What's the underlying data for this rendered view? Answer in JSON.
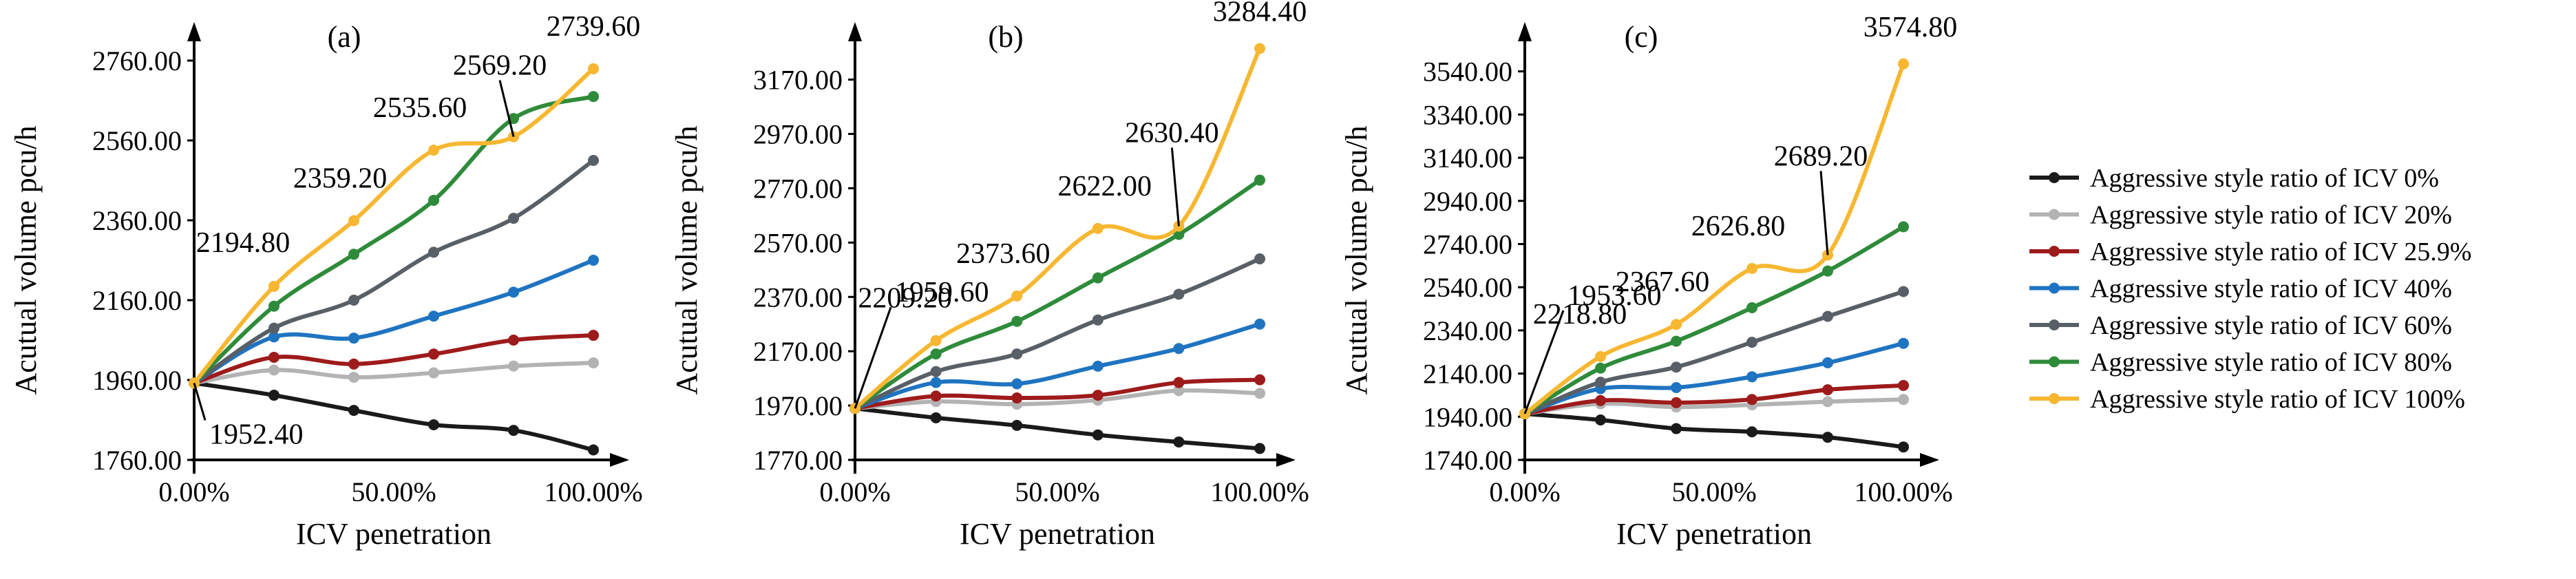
{
  "chart_data": [
    {
      "type": "line",
      "panel_label": "(a)",
      "xlabel": "ICV penetration",
      "ylabel": "Acutual volume pcu/h",
      "x": [
        0,
        20,
        40,
        60,
        80,
        100
      ],
      "xlim": [
        0,
        100
      ],
      "ylim": [
        1760,
        2760
      ],
      "x_ticks": [
        {
          "v": 0,
          "label": "0.00%"
        },
        {
          "v": 50,
          "label": "50.00%"
        },
        {
          "v": 100,
          "label": "100.00%"
        }
      ],
      "y_ticks": [
        {
          "v": 1760,
          "label": "1760.00"
        },
        {
          "v": 1960,
          "label": "1960.00"
        },
        {
          "v": 2160,
          "label": "2160.00"
        },
        {
          "v": 2360,
          "label": "2360.00"
        },
        {
          "v": 2560,
          "label": "2560.00"
        },
        {
          "v": 2760,
          "label": "2760.00"
        }
      ],
      "series": [
        {
          "name": "Aggressive style ratio of ICV 0%",
          "values": [
            1952.4,
            1922,
            1884,
            1848,
            1834,
            1785
          ]
        },
        {
          "name": "Aggressive style ratio of ICV 20%",
          "values": [
            1952.4,
            1985,
            1967,
            1978,
            1995,
            2003
          ]
        },
        {
          "name": "Aggressive style ratio of ICV 25.9%",
          "values": [
            1952.4,
            2017,
            2000,
            2025,
            2060,
            2072
          ]
        },
        {
          "name": "Aggressive style ratio of ICV 40%",
          "values": [
            1952.4,
            2068,
            2065,
            2120,
            2180,
            2260
          ]
        },
        {
          "name": "Aggressive style ratio of ICV 60%",
          "values": [
            1952.4,
            2090,
            2160,
            2280,
            2365,
            2510
          ]
        },
        {
          "name": "Aggressive style ratio of ICV 80%",
          "values": [
            1952.4,
            2145,
            2275,
            2410,
            2615,
            2670
          ]
        },
        {
          "name": "Aggressive style ratio of ICV 100%",
          "values": [
            1952.4,
            2194.8,
            2359.2,
            2535.6,
            2569.2,
            2739.6
          ]
        }
      ],
      "annotations": [
        {
          "text": "2739.60",
          "x": 100,
          "y": 2739.6
        },
        {
          "text": "2569.20",
          "x": 80,
          "y": 2569.2
        },
        {
          "text": "2535.60",
          "x": 60,
          "y": 2535.6
        },
        {
          "text": "2359.20",
          "x": 40,
          "y": 2359.2
        },
        {
          "text": "2194.80",
          "x": 20,
          "y": 2194.8
        },
        {
          "text": "1952.40",
          "x": 0,
          "y": 1952.4
        }
      ]
    },
    {
      "type": "line",
      "panel_label": "(b)",
      "xlabel": "ICV penetration",
      "ylabel": "Acutual volume pcu/h",
      "x": [
        0,
        20,
        40,
        60,
        80,
        100
      ],
      "xlim": [
        0,
        100
      ],
      "ylim": [
        1770,
        3240
      ],
      "x_ticks": [
        {
          "v": 0,
          "label": "0.00%"
        },
        {
          "v": 50,
          "label": "50.00%"
        },
        {
          "v": 100,
          "label": "100.00%"
        }
      ],
      "y_ticks": [
        {
          "v": 1770,
          "label": "1770.00"
        },
        {
          "v": 1970,
          "label": "1970.00"
        },
        {
          "v": 2170,
          "label": "2170.00"
        },
        {
          "v": 2370,
          "label": "2370.00"
        },
        {
          "v": 2570,
          "label": "2570.00"
        },
        {
          "v": 2770,
          "label": "2770.00"
        },
        {
          "v": 2970,
          "label": "2970.00"
        },
        {
          "v": 3170,
          "label": "3170.00"
        }
      ],
      "series": [
        {
          "name": "Aggressive style ratio of ICV 0%",
          "values": [
            1959.6,
            1925,
            1897,
            1862,
            1836,
            1812
          ]
        },
        {
          "name": "Aggressive style ratio of ICV 20%",
          "values": [
            1959.6,
            1985,
            1975,
            1990,
            2025,
            2015
          ]
        },
        {
          "name": "Aggressive style ratio of ICV 25.9%",
          "values": [
            1959.6,
            2005,
            1998,
            2008,
            2055,
            2065
          ]
        },
        {
          "name": "Aggressive style ratio of ICV 40%",
          "values": [
            1959.6,
            2055,
            2050,
            2115,
            2180,
            2270
          ]
        },
        {
          "name": "Aggressive style ratio of ICV 60%",
          "values": [
            1959.6,
            2095,
            2160,
            2285,
            2380,
            2510
          ]
        },
        {
          "name": "Aggressive style ratio of ICV 80%",
          "values": [
            1959.6,
            2160,
            2280,
            2440,
            2600,
            2800
          ]
        },
        {
          "name": "Aggressive style ratio of ICV 100%",
          "values": [
            1959.6,
            2209.2,
            2373.6,
            2622.0,
            2630.4,
            3284.4
          ]
        }
      ],
      "annotations": [
        {
          "text": "3284.40",
          "x": 100,
          "y": 3284.4
        },
        {
          "text": "2630.40",
          "x": 80,
          "y": 2630.4
        },
        {
          "text": "2622.00",
          "x": 60,
          "y": 2622.0
        },
        {
          "text": "2373.60",
          "x": 40,
          "y": 2373.6
        },
        {
          "text": "2209.20",
          "x": 20,
          "y": 2209.2
        },
        {
          "text": "1959.60",
          "x": 0,
          "y": 1959.6
        }
      ]
    },
    {
      "type": "line",
      "panel_label": "(c)",
      "xlabel": "ICV penetration",
      "ylabel": "Acutual volume pcu/h",
      "x": [
        0,
        20,
        40,
        60,
        80,
        100
      ],
      "xlim": [
        0,
        100
      ],
      "ylim": [
        1740,
        3590
      ],
      "x_ticks": [
        {
          "v": 0,
          "label": "0.00%"
        },
        {
          "v": 50,
          "label": "50.00%"
        },
        {
          "v": 100,
          "label": "100.00%"
        }
      ],
      "y_ticks": [
        {
          "v": 1740,
          "label": "1740.00"
        },
        {
          "v": 1940,
          "label": "1940.00"
        },
        {
          "v": 2140,
          "label": "2140.00"
        },
        {
          "v": 2340,
          "label": "2340.00"
        },
        {
          "v": 2540,
          "label": "2540.00"
        },
        {
          "v": 2740,
          "label": "2740.00"
        },
        {
          "v": 2940,
          "label": "2940.00"
        },
        {
          "v": 3140,
          "label": "3140.00"
        },
        {
          "v": 3340,
          "label": "3340.00"
        },
        {
          "v": 3540,
          "label": "3540.00"
        }
      ],
      "series": [
        {
          "name": "Aggressive style ratio of ICV 0%",
          "values": [
            1953.6,
            1925,
            1885,
            1870,
            1845,
            1800
          ]
        },
        {
          "name": "Aggressive style ratio of ICV 20%",
          "values": [
            1953.6,
            2000,
            1985,
            1995,
            2010,
            2020
          ]
        },
        {
          "name": "Aggressive style ratio of ICV 25.9%",
          "values": [
            1953.6,
            2015,
            2005,
            2020,
            2065,
            2085
          ]
        },
        {
          "name": "Aggressive style ratio of ICV 40%",
          "values": [
            1953.6,
            2070,
            2075,
            2125,
            2190,
            2280
          ]
        },
        {
          "name": "Aggressive style ratio of ICV 60%",
          "values": [
            1953.6,
            2100,
            2170,
            2285,
            2405,
            2520
          ]
        },
        {
          "name": "Aggressive style ratio of ICV 80%",
          "values": [
            1953.6,
            2165,
            2290,
            2445,
            2615,
            2820
          ]
        },
        {
          "name": "Aggressive style ratio of ICV 100%",
          "values": [
            1953.6,
            2218.8,
            2367.6,
            2626.8,
            2689.2,
            3574.8
          ]
        }
      ],
      "annotations": [
        {
          "text": "3574.80",
          "x": 100,
          "y": 3574.8
        },
        {
          "text": "2689.20",
          "x": 80,
          "y": 2689.2
        },
        {
          "text": "2626.80",
          "x": 60,
          "y": 2626.8
        },
        {
          "text": "2367.60",
          "x": 40,
          "y": 2367.6
        },
        {
          "text": "2218.80",
          "x": 20,
          "y": 2218.8
        },
        {
          "text": "1953.60",
          "x": 0,
          "y": 1953.6
        }
      ]
    }
  ],
  "legend": {
    "items": [
      {
        "label": "Aggressive style ratio of ICV 0%",
        "color": "#1a1a1a"
      },
      {
        "label": "Aggressive style ratio of ICV 20%",
        "color": "#b3b3b3"
      },
      {
        "label": "Aggressive style ratio of ICV 25.9%",
        "color": "#9e1b1b"
      },
      {
        "label": "Aggressive style ratio of ICV 40%",
        "color": "#1f74c1"
      },
      {
        "label": "Aggressive style ratio of ICV 60%",
        "color": "#595f66"
      },
      {
        "label": "Aggressive style ratio of ICV 80%",
        "color": "#2e8b3a"
      },
      {
        "label": "Aggressive style ratio of ICV 100%",
        "color": "#f7b731"
      }
    ]
  }
}
